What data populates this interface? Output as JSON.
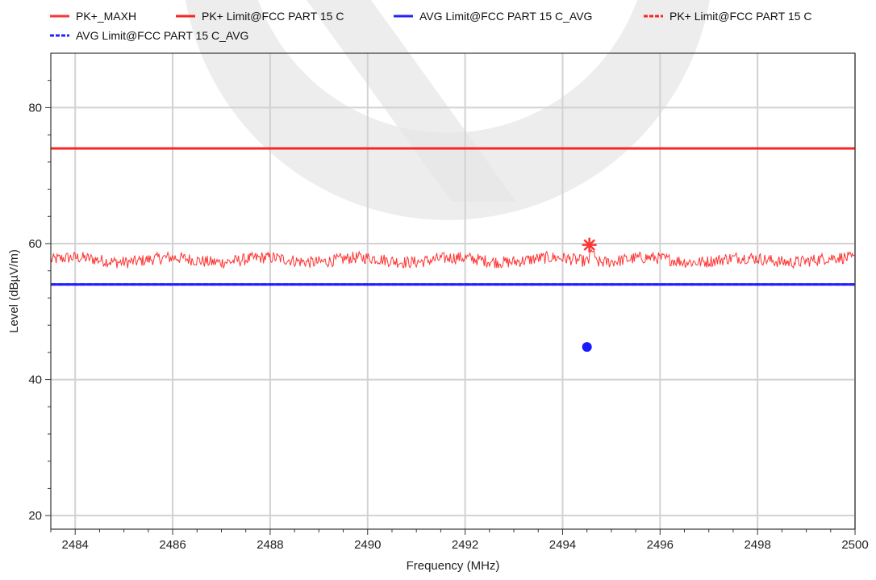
{
  "chart_data": {
    "type": "line",
    "title": "",
    "xlabel": "Frequency (MHz)",
    "ylabel": "Level (dBµV/m)",
    "xlim": [
      2483.5,
      2500
    ],
    "ylim": [
      18,
      88
    ],
    "x_ticks": [
      2484,
      2486,
      2488,
      2490,
      2492,
      2494,
      2496,
      2498,
      2500
    ],
    "y_ticks": [
      20,
      40,
      60,
      80
    ],
    "grid": true,
    "legend_position": "top",
    "series": [
      {
        "name": "PK+_MAXH",
        "color": "#ff3333",
        "style": "solid",
        "type": "noise_trace",
        "x_range": [
          2483.5,
          2500
        ],
        "baseline": 57.6,
        "spread": 0.9,
        "peak_x": 2494.6,
        "peak_y": 59.2
      },
      {
        "name": "PK+ Limit@FCC PART 15 C",
        "color": "#ff2222",
        "style": "solid",
        "x": [
          2483.5,
          2500
        ],
        "y": [
          74,
          74
        ]
      },
      {
        "name": "AVG Limit@FCC PART 15 C_AVG",
        "color": "#2222ff",
        "style": "solid",
        "x": [
          2483.5,
          2500
        ],
        "y": [
          54,
          54
        ]
      },
      {
        "name": "PK+ Limit@FCC PART 15 C",
        "color": "#ff2222",
        "style": "dashed",
        "x": [
          2483.5,
          2500
        ],
        "y": [
          74,
          74
        ]
      },
      {
        "name": "AVG Limit@FCC PART 15 C_AVG",
        "color": "#2222ff",
        "style": "dashed",
        "x": [
          2483.5,
          2500
        ],
        "y": [
          54,
          54
        ]
      }
    ],
    "markers": [
      {
        "type": "star",
        "x": 2494.55,
        "y": 59.8,
        "color": "#ff3333"
      },
      {
        "type": "dot",
        "x": 2494.5,
        "y": 44.8,
        "color": "#1a1aff"
      }
    ]
  }
}
